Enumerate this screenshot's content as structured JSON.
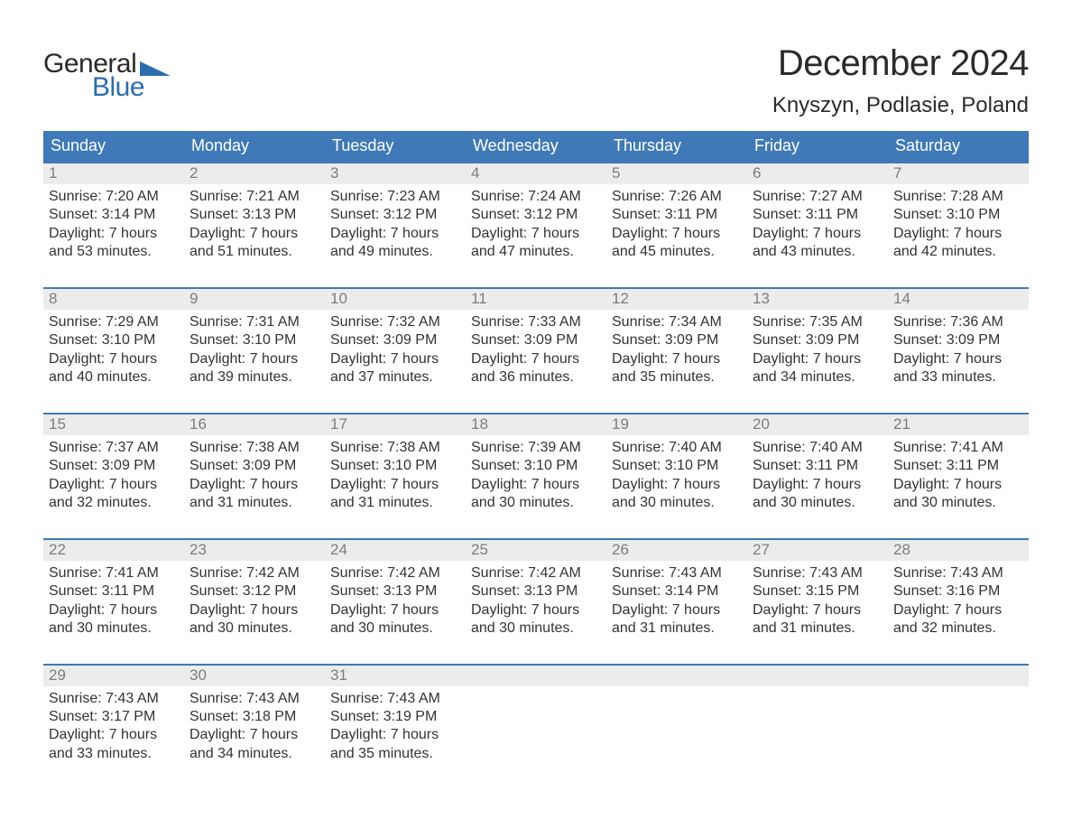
{
  "logo": {
    "text_top": "General",
    "text_bottom": "Blue",
    "shape_color": "#2a6db0",
    "top_color": "#2b2b2b",
    "bottom_color": "#2a6db0"
  },
  "header": {
    "month_title": "December 2024",
    "location": "Knyszyn, Podlasie, Poland"
  },
  "styling": {
    "header_bg": "#3f79b7",
    "header_text_color": "#ffffff",
    "daynum_bg": "#ececec",
    "daynum_color": "#7d7d7d",
    "row_border_color": "#3f79b7",
    "body_text_color": "#333333",
    "background": "#ffffff",
    "weekday_fontsize": 18,
    "month_title_fontsize": 40,
    "location_fontsize": 24,
    "day_body_fontsize": 16
  },
  "weekdays": [
    "Sunday",
    "Monday",
    "Tuesday",
    "Wednesday",
    "Thursday",
    "Friday",
    "Saturday"
  ],
  "weeks": [
    [
      {
        "n": "1",
        "sunrise": "Sunrise: 7:20 AM",
        "sunset": "Sunset: 3:14 PM",
        "d1": "Daylight: 7 hours",
        "d2": "and 53 minutes."
      },
      {
        "n": "2",
        "sunrise": "Sunrise: 7:21 AM",
        "sunset": "Sunset: 3:13 PM",
        "d1": "Daylight: 7 hours",
        "d2": "and 51 minutes."
      },
      {
        "n": "3",
        "sunrise": "Sunrise: 7:23 AM",
        "sunset": "Sunset: 3:12 PM",
        "d1": "Daylight: 7 hours",
        "d2": "and 49 minutes."
      },
      {
        "n": "4",
        "sunrise": "Sunrise: 7:24 AM",
        "sunset": "Sunset: 3:12 PM",
        "d1": "Daylight: 7 hours",
        "d2": "and 47 minutes."
      },
      {
        "n": "5",
        "sunrise": "Sunrise: 7:26 AM",
        "sunset": "Sunset: 3:11 PM",
        "d1": "Daylight: 7 hours",
        "d2": "and 45 minutes."
      },
      {
        "n": "6",
        "sunrise": "Sunrise: 7:27 AM",
        "sunset": "Sunset: 3:11 PM",
        "d1": "Daylight: 7 hours",
        "d2": "and 43 minutes."
      },
      {
        "n": "7",
        "sunrise": "Sunrise: 7:28 AM",
        "sunset": "Sunset: 3:10 PM",
        "d1": "Daylight: 7 hours",
        "d2": "and 42 minutes."
      }
    ],
    [
      {
        "n": "8",
        "sunrise": "Sunrise: 7:29 AM",
        "sunset": "Sunset: 3:10 PM",
        "d1": "Daylight: 7 hours",
        "d2": "and 40 minutes."
      },
      {
        "n": "9",
        "sunrise": "Sunrise: 7:31 AM",
        "sunset": "Sunset: 3:10 PM",
        "d1": "Daylight: 7 hours",
        "d2": "and 39 minutes."
      },
      {
        "n": "10",
        "sunrise": "Sunrise: 7:32 AM",
        "sunset": "Sunset: 3:09 PM",
        "d1": "Daylight: 7 hours",
        "d2": "and 37 minutes."
      },
      {
        "n": "11",
        "sunrise": "Sunrise: 7:33 AM",
        "sunset": "Sunset: 3:09 PM",
        "d1": "Daylight: 7 hours",
        "d2": "and 36 minutes."
      },
      {
        "n": "12",
        "sunrise": "Sunrise: 7:34 AM",
        "sunset": "Sunset: 3:09 PM",
        "d1": "Daylight: 7 hours",
        "d2": "and 35 minutes."
      },
      {
        "n": "13",
        "sunrise": "Sunrise: 7:35 AM",
        "sunset": "Sunset: 3:09 PM",
        "d1": "Daylight: 7 hours",
        "d2": "and 34 minutes."
      },
      {
        "n": "14",
        "sunrise": "Sunrise: 7:36 AM",
        "sunset": "Sunset: 3:09 PM",
        "d1": "Daylight: 7 hours",
        "d2": "and 33 minutes."
      }
    ],
    [
      {
        "n": "15",
        "sunrise": "Sunrise: 7:37 AM",
        "sunset": "Sunset: 3:09 PM",
        "d1": "Daylight: 7 hours",
        "d2": "and 32 minutes."
      },
      {
        "n": "16",
        "sunrise": "Sunrise: 7:38 AM",
        "sunset": "Sunset: 3:09 PM",
        "d1": "Daylight: 7 hours",
        "d2": "and 31 minutes."
      },
      {
        "n": "17",
        "sunrise": "Sunrise: 7:38 AM",
        "sunset": "Sunset: 3:10 PM",
        "d1": "Daylight: 7 hours",
        "d2": "and 31 minutes."
      },
      {
        "n": "18",
        "sunrise": "Sunrise: 7:39 AM",
        "sunset": "Sunset: 3:10 PM",
        "d1": "Daylight: 7 hours",
        "d2": "and 30 minutes."
      },
      {
        "n": "19",
        "sunrise": "Sunrise: 7:40 AM",
        "sunset": "Sunset: 3:10 PM",
        "d1": "Daylight: 7 hours",
        "d2": "and 30 minutes."
      },
      {
        "n": "20",
        "sunrise": "Sunrise: 7:40 AM",
        "sunset": "Sunset: 3:11 PM",
        "d1": "Daylight: 7 hours",
        "d2": "and 30 minutes."
      },
      {
        "n": "21",
        "sunrise": "Sunrise: 7:41 AM",
        "sunset": "Sunset: 3:11 PM",
        "d1": "Daylight: 7 hours",
        "d2": "and 30 minutes."
      }
    ],
    [
      {
        "n": "22",
        "sunrise": "Sunrise: 7:41 AM",
        "sunset": "Sunset: 3:11 PM",
        "d1": "Daylight: 7 hours",
        "d2": "and 30 minutes."
      },
      {
        "n": "23",
        "sunrise": "Sunrise: 7:42 AM",
        "sunset": "Sunset: 3:12 PM",
        "d1": "Daylight: 7 hours",
        "d2": "and 30 minutes."
      },
      {
        "n": "24",
        "sunrise": "Sunrise: 7:42 AM",
        "sunset": "Sunset: 3:13 PM",
        "d1": "Daylight: 7 hours",
        "d2": "and 30 minutes."
      },
      {
        "n": "25",
        "sunrise": "Sunrise: 7:42 AM",
        "sunset": "Sunset: 3:13 PM",
        "d1": "Daylight: 7 hours",
        "d2": "and 30 minutes."
      },
      {
        "n": "26",
        "sunrise": "Sunrise: 7:43 AM",
        "sunset": "Sunset: 3:14 PM",
        "d1": "Daylight: 7 hours",
        "d2": "and 31 minutes."
      },
      {
        "n": "27",
        "sunrise": "Sunrise: 7:43 AM",
        "sunset": "Sunset: 3:15 PM",
        "d1": "Daylight: 7 hours",
        "d2": "and 31 minutes."
      },
      {
        "n": "28",
        "sunrise": "Sunrise: 7:43 AM",
        "sunset": "Sunset: 3:16 PM",
        "d1": "Daylight: 7 hours",
        "d2": "and 32 minutes."
      }
    ],
    [
      {
        "n": "29",
        "sunrise": "Sunrise: 7:43 AM",
        "sunset": "Sunset: 3:17 PM",
        "d1": "Daylight: 7 hours",
        "d2": "and 33 minutes."
      },
      {
        "n": "30",
        "sunrise": "Sunrise: 7:43 AM",
        "sunset": "Sunset: 3:18 PM",
        "d1": "Daylight: 7 hours",
        "d2": "and 34 minutes."
      },
      {
        "n": "31",
        "sunrise": "Sunrise: 7:43 AM",
        "sunset": "Sunset: 3:19 PM",
        "d1": "Daylight: 7 hours",
        "d2": "and 35 minutes."
      },
      null,
      null,
      null,
      null
    ]
  ]
}
